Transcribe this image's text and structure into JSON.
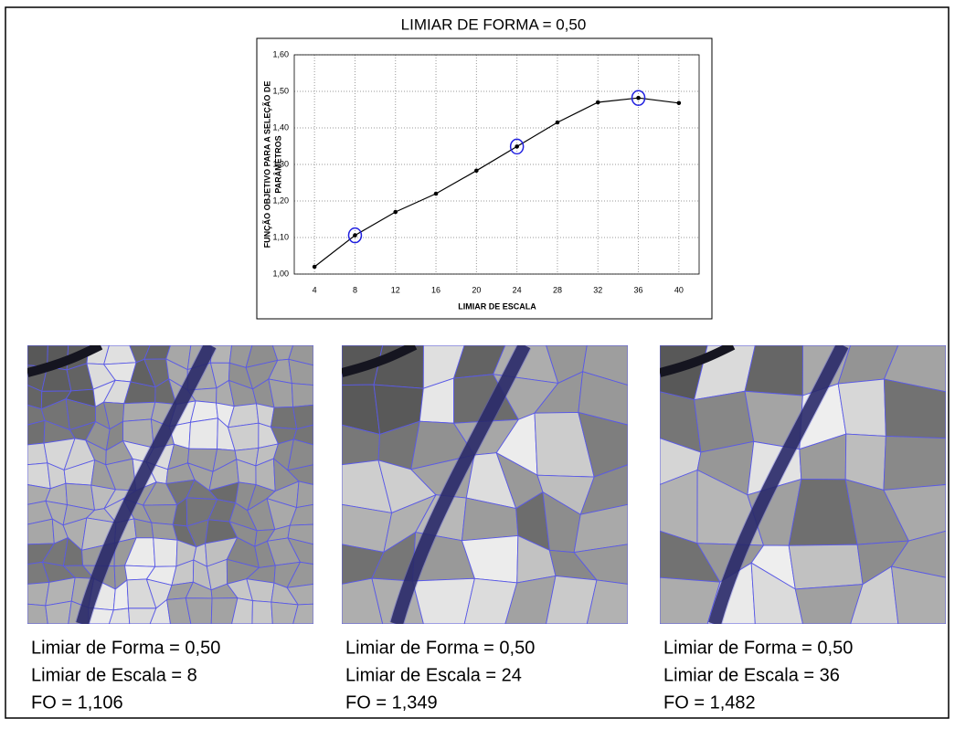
{
  "chart_data": {
    "type": "line",
    "title": "LIMIAR DE FORMA = 0,50",
    "x_label": "LIMIAR DE ESCALA",
    "y_label": [
      "FUNÇÃO OBJETIVO PARA A SELEÇÃO DE",
      "PARÂMETROS"
    ],
    "x": [
      4,
      8,
      12,
      16,
      20,
      24,
      28,
      32,
      36,
      40
    ],
    "values": [
      1.02,
      1.106,
      1.17,
      1.22,
      1.283,
      1.349,
      1.415,
      1.47,
      1.482,
      1.468
    ],
    "color": "#000000",
    "highlight_color": "#2020e0",
    "highlighted": [
      8,
      24,
      36
    ],
    "xlim": [
      2,
      42
    ],
    "xticks": [
      4,
      8,
      12,
      16,
      20,
      24,
      28,
      32,
      36,
      40
    ],
    "ylim": [
      1.0,
      1.6
    ],
    "yticks": [
      {
        "value": 1.0,
        "label": "1,00"
      },
      {
        "value": 1.1,
        "label": "1,10"
      },
      {
        "value": 1.2,
        "label": "1,20"
      },
      {
        "value": 1.3,
        "label": "1,30"
      },
      {
        "value": 1.4,
        "label": "1,40"
      },
      {
        "value": 1.5,
        "label": "1,50"
      },
      {
        "value": 1.6,
        "label": "1,60"
      }
    ],
    "grid": true
  },
  "panels": [
    {
      "lines": [
        "Limiar de Forma = 0,50",
        "Limiar de Escala = 8",
        "FO = 1,106"
      ]
    },
    {
      "lines": [
        "Limiar de Forma = 0,50",
        "Limiar de Escala = 24",
        "FO = 1,349"
      ]
    },
    {
      "lines": [
        "Limiar de Forma = 0,50",
        "Limiar de Escala = 36",
        "FO = 1,482"
      ]
    }
  ]
}
